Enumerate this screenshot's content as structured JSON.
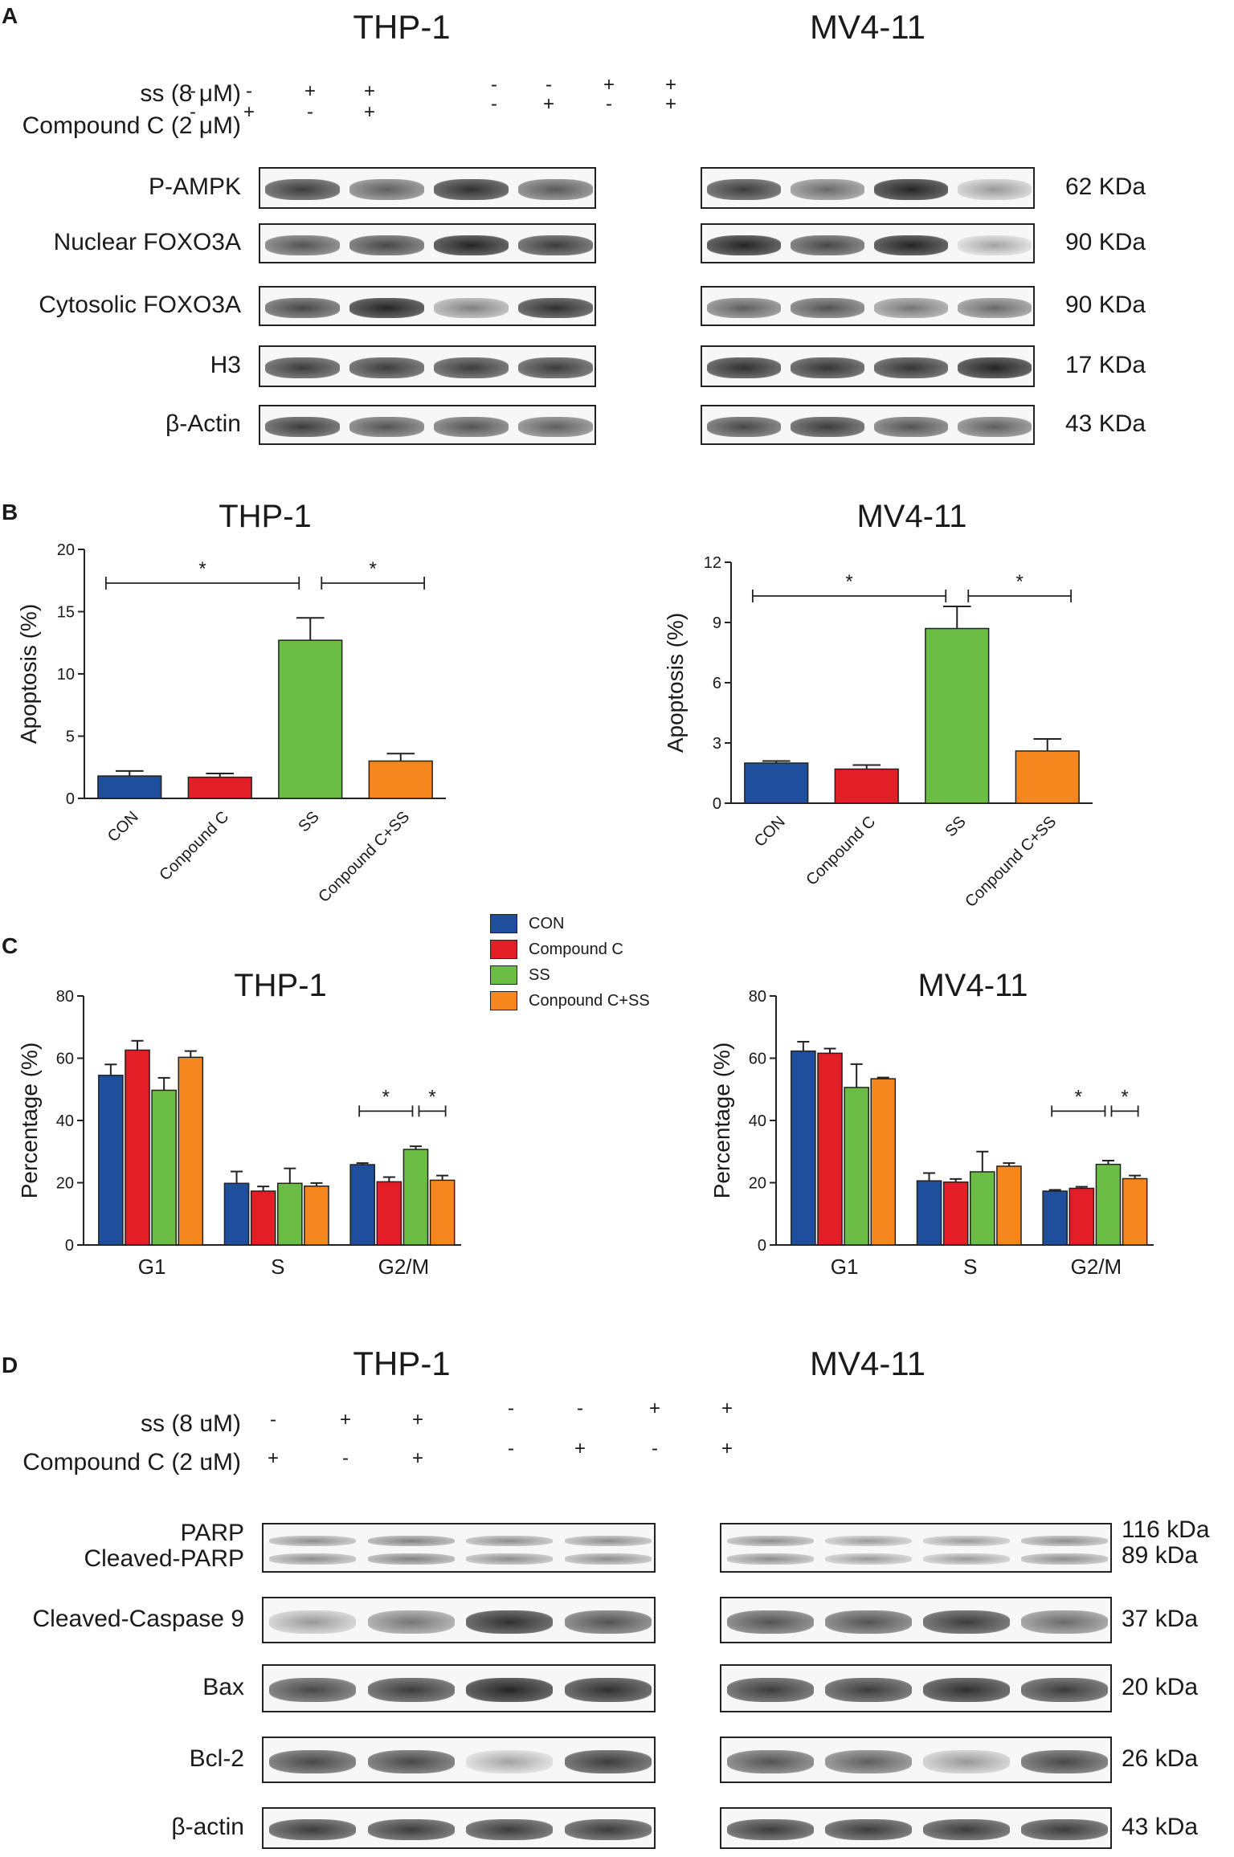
{
  "panels": {
    "a": {
      "label": "A",
      "cells": [
        {
          "title": "THP-1"
        },
        {
          "title": "MV4-11"
        }
      ],
      "conditions": [
        {
          "label": "ss (8 μM)",
          "signs": [
            "-",
            "-",
            "+",
            "+"
          ]
        },
        {
          "label": "Compound C (2 μM)",
          "signs": [
            "-",
            "+",
            "-",
            "+"
          ]
        }
      ],
      "rows": [
        {
          "label": "P-AMPK",
          "kda": "62 KDa"
        },
        {
          "label": "Nuclear FOXO3A",
          "kda": "90 KDa"
        },
        {
          "label": "Cytosolic FOXO3A",
          "kda": "90 KDa"
        },
        {
          "label": "H3",
          "kda": "17 KDa"
        },
        {
          "label": "β-Actin",
          "kda": "43 KDa"
        }
      ]
    },
    "b": {
      "label": "B"
    },
    "c": {
      "label": "C"
    },
    "d": {
      "label": "D",
      "cells": [
        {
          "title": "THP-1"
        },
        {
          "title": "MV4-11"
        }
      ],
      "conditions": [
        {
          "label": "ss (8 uM)",
          "signs": [
            "-",
            "-",
            "+",
            "+"
          ]
        },
        {
          "label": "Compound C (2 uM)",
          "signs": [
            "-",
            "+",
            "-",
            "+"
          ]
        }
      ],
      "rows": [
        {
          "label": "PARP",
          "label2": "Cleaved-PARP",
          "kda": "116 kDa",
          "kda2": "89 kDa"
        },
        {
          "label": "Cleaved-Caspase 9",
          "kda": "37 kDa"
        },
        {
          "label": "Bax",
          "kda": "20 kDa"
        },
        {
          "label": "Bcl-2",
          "kda": "26 kDa"
        },
        {
          "label": "β-actin",
          "kda": "43 kDa"
        }
      ]
    }
  },
  "colors": {
    "CON": "#1f4e9c",
    "Conpound C": "#e41e26",
    "SS": "#6cbd45",
    "Conpound C+SS": "#f6871f"
  },
  "chart_data": [
    {
      "type": "bar",
      "title": "THP-1",
      "ylabel": "Apoptosis (%)",
      "ylim": [
        0,
        20
      ],
      "yticks": [
        "0",
        "5",
        "10",
        "15",
        "20"
      ],
      "categories": [
        "CON",
        "Conpound C",
        "SS",
        "Conpound C+SS"
      ],
      "values": [
        1.8,
        1.7,
        12.7,
        3.0
      ],
      "errors": [
        0.4,
        0.3,
        1.8,
        0.6
      ],
      "significance": [
        {
          "from": "CON",
          "to": "SS",
          "label": "*"
        },
        {
          "from": "SS",
          "to": "Conpound C+SS",
          "label": "*"
        }
      ]
    },
    {
      "type": "bar",
      "title": "MV4-11",
      "ylabel": "Apoptosis (%)",
      "ylim": [
        0,
        12
      ],
      "yticks": [
        "0",
        "3",
        "6",
        "9",
        "12"
      ],
      "categories": [
        "CON",
        "Conpound C",
        "SS",
        "Conpound C+SS"
      ],
      "values": [
        2.0,
        1.7,
        8.7,
        2.6
      ],
      "errors": [
        0.1,
        0.2,
        1.1,
        0.6
      ],
      "significance": [
        {
          "from": "CON",
          "to": "SS",
          "label": "*"
        },
        {
          "from": "SS",
          "to": "Conpound C+SS",
          "label": "*"
        }
      ]
    },
    {
      "type": "bar",
      "title": "THP-1",
      "ylabel": "Percentage (%)",
      "ylim": [
        0,
        80
      ],
      "yticks": [
        "0",
        "20",
        "40",
        "60",
        "80"
      ],
      "categories": [
        "G1",
        "S",
        "G2/M"
      ],
      "series": [
        {
          "name": "CON",
          "values": [
            54.5,
            19.8,
            25.8
          ],
          "errors": [
            3.5,
            3.8,
            0.5
          ]
        },
        {
          "name": "Compound C",
          "values": [
            62.6,
            17.3,
            20.3
          ],
          "errors": [
            3.0,
            1.5,
            1.5
          ]
        },
        {
          "name": "SS",
          "values": [
            49.7,
            19.8,
            30.7
          ],
          "errors": [
            4.0,
            4.8,
            1.0
          ]
        },
        {
          "name": "Conpound C+SS",
          "values": [
            60.3,
            18.9,
            20.8
          ],
          "errors": [
            2.0,
            1.0,
            1.5
          ]
        }
      ],
      "significance": [
        {
          "group": "G2/M",
          "from": 0,
          "to": 2,
          "label": "*"
        },
        {
          "group": "G2/M",
          "from": 2,
          "to": 3,
          "label": "*"
        }
      ]
    },
    {
      "type": "bar",
      "title": "MV4-11",
      "ylabel": "Percentage (%)",
      "ylim": [
        0,
        80
      ],
      "yticks": [
        "0",
        "20",
        "40",
        "60",
        "80"
      ],
      "categories": [
        "G1",
        "S",
        "G2/M"
      ],
      "series": [
        {
          "name": "CON",
          "values": [
            62.3,
            20.6,
            17.3
          ],
          "errors": [
            3.0,
            2.5,
            0.4
          ]
        },
        {
          "name": "Compound C",
          "values": [
            61.6,
            20.2,
            18.2
          ],
          "errors": [
            1.5,
            1.0,
            0.5
          ]
        },
        {
          "name": "SS",
          "values": [
            50.6,
            23.5,
            25.9
          ],
          "errors": [
            7.5,
            6.5,
            1.2
          ]
        },
        {
          "name": "Conpound C+SS",
          "values": [
            53.4,
            25.3,
            21.3
          ],
          "errors": [
            0.4,
            1.0,
            1.0
          ]
        }
      ],
      "significance": [
        {
          "group": "G2/M",
          "from": 0,
          "to": 2,
          "label": "*"
        },
        {
          "group": "G2/M",
          "from": 2,
          "to": 3,
          "label": "*"
        }
      ]
    }
  ]
}
